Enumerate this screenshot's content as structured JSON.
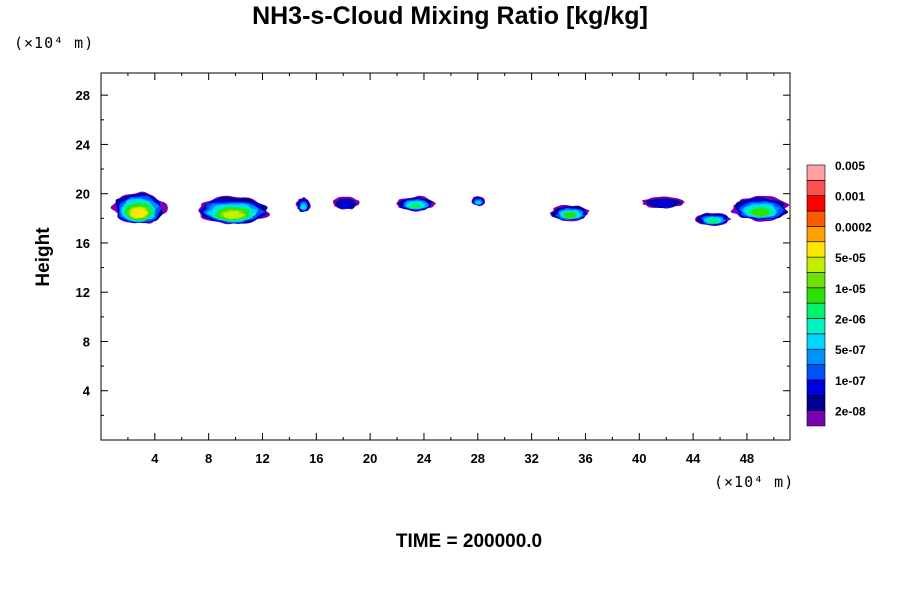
{
  "chart_data": {
    "type": "heatmap",
    "title": "NH3-s-Cloud Mixing Ratio [kg/kg]",
    "xlabel": "",
    "ylabel": "Height",
    "x_unit": "(×10⁴ m)",
    "y_unit": "(×10⁴ m)",
    "xlim": [
      0,
      51.2
    ],
    "ylim": [
      0,
      29.8
    ],
    "x_ticks": [
      "4",
      "8",
      "12",
      "16",
      "20",
      "24",
      "28",
      "32",
      "36",
      "40",
      "44",
      "48"
    ],
    "y_ticks": [
      "4",
      "8",
      "12",
      "16",
      "20",
      "24",
      "28"
    ],
    "colorbar": {
      "colors": [
        "#7a00b4",
        "#000090",
        "#0000dd",
        "#0050ff",
        "#0090ff",
        "#00d8ff",
        "#00f0c8",
        "#00f070",
        "#2ce000",
        "#70e000",
        "#c0f000",
        "#ffe800",
        "#ffa000",
        "#ff5a00",
        "#ff0000",
        "#ff5050",
        "#ffa0a0"
      ],
      "labels": [
        "2e-08",
        "1e-07",
        "5e-07",
        "2e-06",
        "1e-05",
        "5e-05",
        "0.0002",
        "0.001",
        "0.005"
      ]
    },
    "clouds": [
      {
        "x": 0.8,
        "x2": 4.8,
        "y": 17.5,
        "y2": 20.2,
        "peak": 12
      },
      {
        "x": 7.0,
        "x2": 12.6,
        "y": 17.5,
        "y2": 19.8,
        "peak": 11
      },
      {
        "x": 14.5,
        "x2": 15.6,
        "y": 18.5,
        "y2": 19.7,
        "peak": 6
      },
      {
        "x": 17.2,
        "x2": 19.2,
        "y": 18.7,
        "y2": 19.8,
        "peak": 3
      },
      {
        "x": 22.0,
        "x2": 24.8,
        "y": 18.6,
        "y2": 19.8,
        "peak": 8
      },
      {
        "x": 27.5,
        "x2": 28.6,
        "y": 19.0,
        "y2": 19.8,
        "peak": 6
      },
      {
        "x": 33.4,
        "x2": 36.3,
        "y": 17.8,
        "y2": 19.1,
        "peak": 9
      },
      {
        "x": 40.2,
        "x2": 43.4,
        "y": 18.8,
        "y2": 19.8,
        "peak": 3
      },
      {
        "x": 44.2,
        "x2": 46.8,
        "y": 17.4,
        "y2": 18.5,
        "peak": 8
      },
      {
        "x": 46.8,
        "x2": 51.2,
        "y": 17.8,
        "y2": 19.8,
        "peak": 9
      }
    ]
  },
  "footer": {
    "time_label": "TIME = 200000.0"
  }
}
